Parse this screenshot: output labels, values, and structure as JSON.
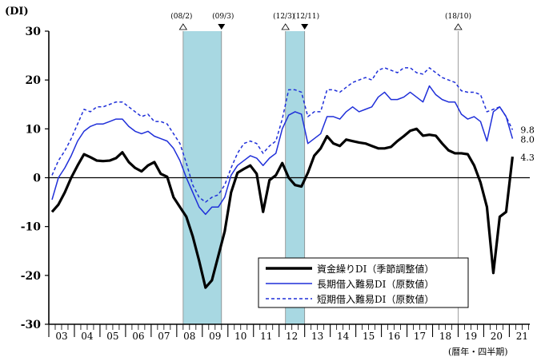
{
  "chart_data": {
    "type": "line",
    "ylabel": "(DI)",
    "xlabel": "(暦年・四半期)",
    "ylim": [
      -30,
      30
    ],
    "y_ticks": [
      30,
      20,
      10,
      0,
      -10,
      -20,
      -30
    ],
    "x_start_year": 2003,
    "x_year_labels": [
      "03",
      "04",
      "05",
      "06",
      "07",
      "08",
      "09",
      "10",
      "11",
      "12",
      "13",
      "14",
      "15",
      "16",
      "17",
      "18",
      "19",
      "20",
      "21"
    ],
    "recession_shading": [
      {
        "start_label": "(08/2)",
        "end_label": "(09/3)",
        "start": "2008Q2",
        "end": "2009Q3"
      },
      {
        "start_label": "(12/3)",
        "end_label": "(12/11)",
        "start": "2012Q2",
        "end": "2012Q4"
      }
    ],
    "peak_marker": {
      "label": "(18/10)",
      "at": "2018Q4"
    },
    "series": [
      {
        "name": "資金繰りDI（季節調整値）",
        "color": "#000000",
        "style": "solid",
        "end_label": "4.3",
        "values": [
          -7,
          -5.5,
          -3,
          0,
          2.5,
          4.8,
          4.2,
          3.5,
          3.4,
          3.5,
          4,
          5.2,
          3.2,
          2,
          1.3,
          2.5,
          3.2,
          0.8,
          0.2,
          -4,
          -6,
          -8,
          -12,
          -17,
          -22.5,
          -21,
          -16,
          -11,
          -3,
          1,
          1.8,
          2.5,
          0.8,
          -7,
          -0.5,
          0.5,
          3,
          0,
          -1.5,
          -1.8,
          1,
          4.5,
          6,
          8.5,
          7,
          6.5,
          7.8,
          7.5,
          7.2,
          7,
          6.5,
          6,
          6,
          6.3,
          7.5,
          8.5,
          9.6,
          10,
          8.6,
          8.8,
          8.6,
          7,
          5.6,
          5,
          5,
          4.8,
          2.5,
          -1,
          -6,
          -19.5,
          -8,
          -7,
          4.3
        ]
      },
      {
        "name": "長期借入難易DI（原数値）",
        "color": "#1f2fd9",
        "style": "solid",
        "end_label": "8.0",
        "values": [
          -4.5,
          0,
          2,
          4.5,
          7.5,
          9.5,
          10.5,
          11,
          11,
          11.5,
          12,
          12,
          10.5,
          9.5,
          9,
          9.5,
          8.5,
          8,
          7.5,
          6,
          3.5,
          0,
          -3,
          -6,
          -7.5,
          -6,
          -6,
          -4,
          0.5,
          2.5,
          3.5,
          4.5,
          4,
          2.5,
          4,
          5,
          10,
          12.8,
          13.5,
          13,
          7,
          8,
          9,
          12.5,
          12.5,
          12,
          13.5,
          14.5,
          13.5,
          14,
          14.5,
          16.5,
          17.5,
          16,
          16,
          16.5,
          17.5,
          16.5,
          15.5,
          18.8,
          17,
          16,
          15.5,
          15.5,
          13,
          12,
          12.5,
          11.5,
          7.5,
          13.5,
          14.5,
          12.5,
          8.0
        ]
      },
      {
        "name": "短期借入難易DI（原数値）",
        "color": "#1f2fd9",
        "style": "dashed",
        "end_label": "9.8",
        "values": [
          0.5,
          3.5,
          5.5,
          8,
          11,
          14,
          13.5,
          14.5,
          14.5,
          15,
          15.5,
          15.5,
          14.5,
          13.5,
          12.5,
          13,
          11.5,
          11.5,
          11,
          9,
          7,
          3,
          -1.5,
          -4,
          -5,
          -4,
          -3.5,
          -1.5,
          2,
          5,
          7,
          7.5,
          7,
          5,
          6.5,
          7.5,
          12,
          18,
          18,
          17.5,
          12.5,
          13.5,
          13.5,
          18,
          18,
          17.5,
          18.5,
          19.5,
          20,
          20.5,
          20,
          22,
          22.5,
          22,
          21.5,
          22.5,
          22.5,
          21.5,
          21.2,
          22.5,
          21.5,
          20.5,
          20,
          19.5,
          17.8,
          17.5,
          17.5,
          17,
          13.5,
          14,
          14.5,
          12.5,
          9.8
        ]
      }
    ]
  }
}
